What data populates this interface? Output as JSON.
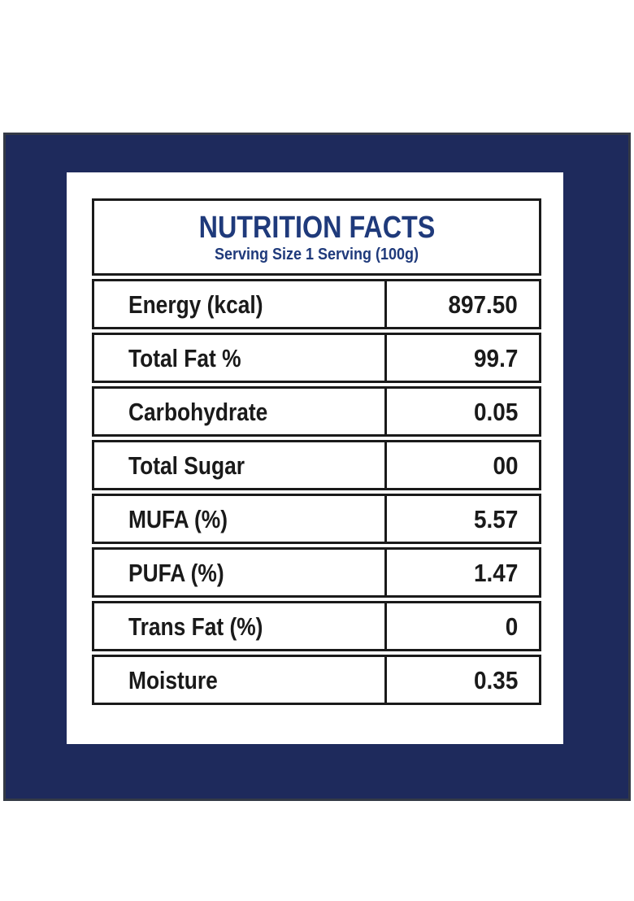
{
  "label": {
    "title": "NUTRITION FACTS",
    "serving": "Serving Size 1 Serving (100g)",
    "rows": [
      {
        "name": "Energy (kcal)",
        "value": "897.50"
      },
      {
        "name": "Total Fat %",
        "value": "99.7"
      },
      {
        "name": "Carbohydrate",
        "value": "0.05"
      },
      {
        "name": "Total Sugar",
        "value": "00"
      },
      {
        "name": "MUFA (%)",
        "value": "5.57"
      },
      {
        "name": "PUFA (%)",
        "value": "1.47"
      },
      {
        "name": "Trans Fat (%)",
        "value": "0"
      },
      {
        "name": "Moisture",
        "value": "0.35"
      }
    ],
    "colors": {
      "background_navy": "#1E2A5C",
      "mat_border": "#343A46",
      "title_blue": "#1F3A7B",
      "ink_black": "#1A1A1A",
      "panel_white": "#FFFFFF"
    }
  }
}
